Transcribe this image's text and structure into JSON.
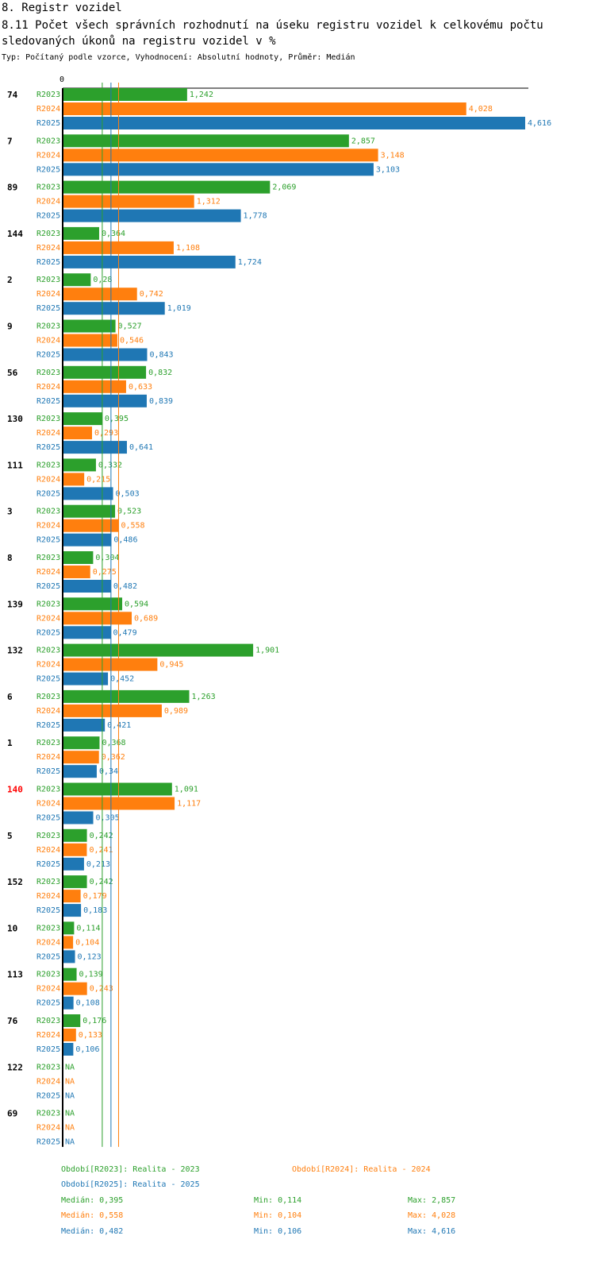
{
  "header": {
    "section_title": "8. Registr vozidel",
    "chart_title": "8.11 Počet všech správních rozhodnutí na úseku registru vozidel k celkovému počtu sledovaných úkonů na registru vozidel v %",
    "subtitle": "Typ: Počítaný podle vzorce, Vyhodnocení: Absolutní hodnoty, Průměr: Medián"
  },
  "colors": {
    "R2023": "#2ca02c",
    "R2024": "#ff7f0e",
    "R2025": "#1f77b4",
    "highlight": "#ff0000",
    "text": "#000000"
  },
  "chart_data": {
    "type": "bar",
    "orientation": "horizontal",
    "axis_zero_label": "0",
    "xlim": [
      0,
      4.616
    ],
    "highlight_category": "140",
    "missing_label": "NA",
    "categories": [
      "74",
      "7",
      "89",
      "144",
      "2",
      "9",
      "56",
      "130",
      "111",
      "3",
      "8",
      "139",
      "132",
      "6",
      "1",
      "140",
      "5",
      "152",
      "10",
      "113",
      "76",
      "122",
      "69"
    ],
    "series": [
      {
        "name": "R2023",
        "values": [
          1.242,
          2.857,
          2.069,
          0.364,
          0.28,
          0.527,
          0.832,
          0.395,
          0.332,
          0.523,
          0.304,
          0.594,
          1.901,
          1.263,
          0.368,
          1.091,
          0.242,
          0.242,
          0.114,
          0.139,
          0.176,
          null,
          null
        ],
        "labels": [
          "1,242",
          "2,857",
          "2,069",
          "0,364",
          "0,28",
          "0,527",
          "0,832",
          "0,395",
          "0,332",
          "0,523",
          "0,304",
          "0,594",
          "1,901",
          "1,263",
          "0,368",
          "1,091",
          "0,242",
          "0,242",
          "0,114",
          "0,139",
          "0,176",
          "NA",
          "NA"
        ]
      },
      {
        "name": "R2024",
        "values": [
          4.028,
          3.148,
          1.312,
          1.108,
          0.742,
          0.546,
          0.633,
          0.293,
          0.215,
          0.558,
          0.275,
          0.689,
          0.945,
          0.989,
          0.362,
          1.117,
          0.241,
          0.179,
          0.104,
          0.243,
          0.133,
          null,
          null
        ],
        "labels": [
          "4,028",
          "3,148",
          "1,312",
          "1,108",
          "0,742",
          "0,546",
          "0,633",
          "0,293",
          "0,215",
          "0,558",
          "0,275",
          "0,689",
          "0,945",
          "0,989",
          "0,362",
          "1,117",
          "0,241",
          "0,179",
          "0,104",
          "0,243",
          "0,133",
          "NA",
          "NA"
        ]
      },
      {
        "name": "R2025",
        "values": [
          4.616,
          3.103,
          1.778,
          1.724,
          1.019,
          0.843,
          0.839,
          0.641,
          0.503,
          0.486,
          0.482,
          0.479,
          0.452,
          0.421,
          0.34,
          0.305,
          0.213,
          0.183,
          0.123,
          0.108,
          0.106,
          null,
          null
        ],
        "labels": [
          "4,616",
          "3,103",
          "1,778",
          "1,724",
          "1,019",
          "0,843",
          "0,839",
          "0,641",
          "0,503",
          "0,486",
          "0,482",
          "0,479",
          "0,452",
          "0,421",
          "0,34",
          "0,305",
          "0,213",
          "0,183",
          "0,123",
          "0,108",
          "0,106",
          "NA",
          "NA"
        ]
      }
    ],
    "medians": [
      {
        "series": "R2023",
        "value": 0.395
      },
      {
        "series": "R2024",
        "value": 0.558
      },
      {
        "series": "R2025",
        "value": 0.482
      }
    ]
  },
  "legend": {
    "r2023": "Období[R2023]: Realita - 2023",
    "r2024": "Období[R2024]: Realita - 2024",
    "r2025": "Období[R2025]: Realita - 2025"
  },
  "stats": [
    {
      "series": "R2023",
      "median": "Medián: 0,395",
      "min": "Min: 0,114",
      "max": "Max: 2,857"
    },
    {
      "series": "R2024",
      "median": "Medián: 0,558",
      "min": "Min: 0,104",
      "max": "Max: 4,028"
    },
    {
      "series": "R2025",
      "median": "Medián: 0,482",
      "min": "Min: 0,106",
      "max": "Max: 4,616"
    }
  ]
}
